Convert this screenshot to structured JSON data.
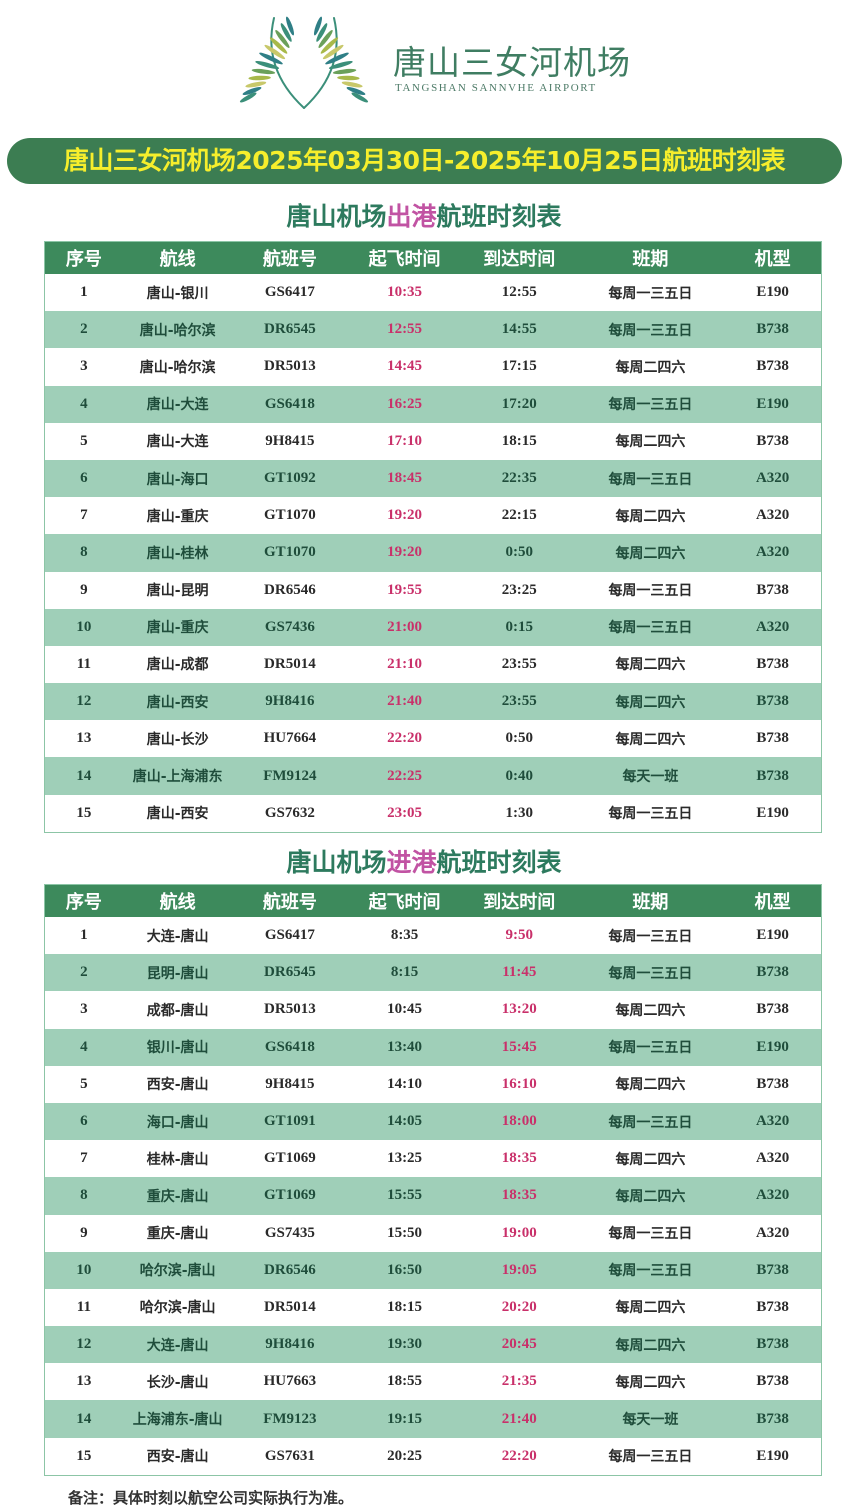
{
  "brand": {
    "name_cn": "唐山三女河机场",
    "name_en": "TANGSHAN SANNVHE AIRPORT"
  },
  "banner": "唐山三女河机场2025年03月30日-2025年10月25日航班时刻表",
  "colors": {
    "header_green": "#3d8a5c",
    "alt_row": "#9fcfb8",
    "time_highlight": "#c9306a",
    "banner_text": "#f6ee2c",
    "title_highlight": "#c153a3"
  },
  "columns": [
    "序号",
    "航线",
    "航班号",
    "起飞时间",
    "到达时间",
    "班期",
    "机型"
  ],
  "departures": {
    "title_pre": "唐山机场",
    "title_hl": "出港",
    "title_post": "航班时刻表",
    "highlight_col": 3,
    "rows": [
      [
        "1",
        "唐山-银川",
        "GS6417",
        "10:35",
        "12:55",
        "每周一三五日",
        "E190"
      ],
      [
        "2",
        "唐山-哈尔滨",
        "DR6545",
        "12:55",
        "14:55",
        "每周一三五日",
        "B738"
      ],
      [
        "3",
        "唐山-哈尔滨",
        "DR5013",
        "14:45",
        "17:15",
        "每周二四六",
        "B738"
      ],
      [
        "4",
        "唐山-大连",
        "GS6418",
        "16:25",
        "17:20",
        "每周一三五日",
        "E190"
      ],
      [
        "5",
        "唐山-大连",
        "9H8415",
        "17:10",
        "18:15",
        "每周二四六",
        "B738"
      ],
      [
        "6",
        "唐山-海口",
        "GT1092",
        "18:45",
        "22:35",
        "每周一三五日",
        "A320"
      ],
      [
        "7",
        "唐山-重庆",
        "GT1070",
        "19:20",
        "22:15",
        "每周二四六",
        "A320"
      ],
      [
        "8",
        "唐山-桂林",
        "GT1070",
        "19:20",
        "0:50",
        "每周二四六",
        "A320"
      ],
      [
        "9",
        "唐山-昆明",
        "DR6546",
        "19:55",
        "23:25",
        "每周一三五日",
        "B738"
      ],
      [
        "10",
        "唐山-重庆",
        "GS7436",
        "21:00",
        "0:15",
        "每周一三五日",
        "A320"
      ],
      [
        "11",
        "唐山-成都",
        "DR5014",
        "21:10",
        "23:55",
        "每周二四六",
        "B738"
      ],
      [
        "12",
        "唐山-西安",
        "9H8416",
        "21:40",
        "23:55",
        "每周二四六",
        "B738"
      ],
      [
        "13",
        "唐山-长沙",
        "HU7664",
        "22:20",
        "0:50",
        "每周二四六",
        "B738"
      ],
      [
        "14",
        "唐山-上海浦东",
        "FM9124",
        "22:25",
        "0:40",
        "每天一班",
        "B738"
      ],
      [
        "15",
        "唐山-西安",
        "GS7632",
        "23:05",
        "1:30",
        "每周一三五日",
        "E190"
      ]
    ]
  },
  "arrivals": {
    "title_pre": "唐山机场",
    "title_hl": "进港",
    "title_post": "航班时刻表",
    "highlight_col": 4,
    "rows": [
      [
        "1",
        "大连-唐山",
        "GS6417",
        "8:35",
        "9:50",
        "每周一三五日",
        "E190"
      ],
      [
        "2",
        "昆明-唐山",
        "DR6545",
        "8:15",
        "11:45",
        "每周一三五日",
        "B738"
      ],
      [
        "3",
        "成都-唐山",
        "DR5013",
        "10:45",
        "13:20",
        "每周二四六",
        "B738"
      ],
      [
        "4",
        "银川-唐山",
        "GS6418",
        "13:40",
        "15:45",
        "每周一三五日",
        "E190"
      ],
      [
        "5",
        "西安-唐山",
        "9H8415",
        "14:10",
        "16:10",
        "每周二四六",
        "B738"
      ],
      [
        "6",
        "海口-唐山",
        "GT1091",
        "14:05",
        "18:00",
        "每周一三五日",
        "A320"
      ],
      [
        "7",
        "桂林-唐山",
        "GT1069",
        "13:25",
        "18:35",
        "每周二四六",
        "A320"
      ],
      [
        "8",
        "重庆-唐山",
        "GT1069",
        "15:55",
        "18:35",
        "每周二四六",
        "A320"
      ],
      [
        "9",
        "重庆-唐山",
        "GS7435",
        "15:50",
        "19:00",
        "每周一三五日",
        "A320"
      ],
      [
        "10",
        "哈尔滨-唐山",
        "DR6546",
        "16:50",
        "19:05",
        "每周一三五日",
        "B738"
      ],
      [
        "11",
        "哈尔滨-唐山",
        "DR5014",
        "18:15",
        "20:20",
        "每周二四六",
        "B738"
      ],
      [
        "12",
        "大连-唐山",
        "9H8416",
        "19:30",
        "20:45",
        "每周二四六",
        "B738"
      ],
      [
        "13",
        "长沙-唐山",
        "HU7663",
        "18:55",
        "21:35",
        "每周二四六",
        "B738"
      ],
      [
        "14",
        "上海浦东-唐山",
        "FM9123",
        "19:15",
        "21:40",
        "每天一班",
        "B738"
      ],
      [
        "15",
        "西安-唐山",
        "GS7631",
        "20:25",
        "22:20",
        "每周一三五日",
        "E190"
      ]
    ]
  },
  "note": "备注：具体时刻以航空公司实际执行为准。"
}
